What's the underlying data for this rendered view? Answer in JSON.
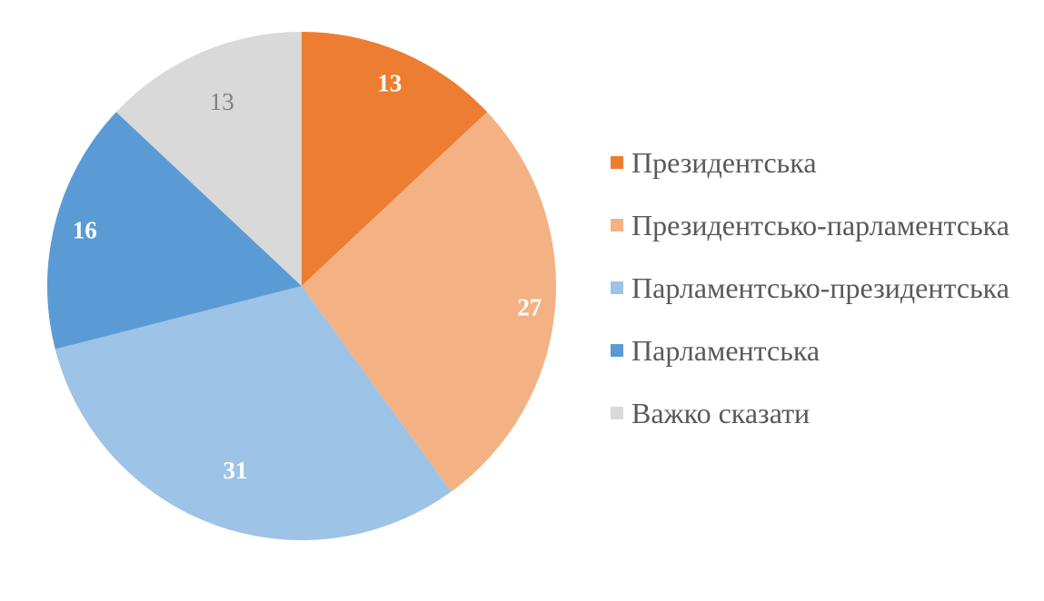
{
  "chart_data": {
    "type": "pie",
    "legend_position": "right",
    "start_angle_deg": 0,
    "direction": "clockwise",
    "background": "#FFFFFF",
    "total": 100,
    "legend_text_color": "#595959",
    "slices": [
      {
        "label": "Президентська",
        "value": 13,
        "color": "#ED7D31",
        "value_label_color": "#FFFFFF",
        "value_label_bold": true
      },
      {
        "label": "Президентсько-парламентська",
        "value": 27,
        "color": "#F4B183",
        "value_label_color": "#FFFFFF",
        "value_label_bold": true
      },
      {
        "label": "Парламентсько-президентська",
        "value": 31,
        "color": "#9DC3E6",
        "value_label_color": "#FFFFFF",
        "value_label_bold": true
      },
      {
        "label": "Парламентська",
        "value": 16,
        "color": "#5B9BD5",
        "value_label_color": "#FFFFFF",
        "value_label_bold": true
      },
      {
        "label": "Важко сказати",
        "value": 13,
        "color": "#D9D9D9",
        "value_label_color": "#7F7F7F",
        "value_label_bold": false
      }
    ]
  }
}
